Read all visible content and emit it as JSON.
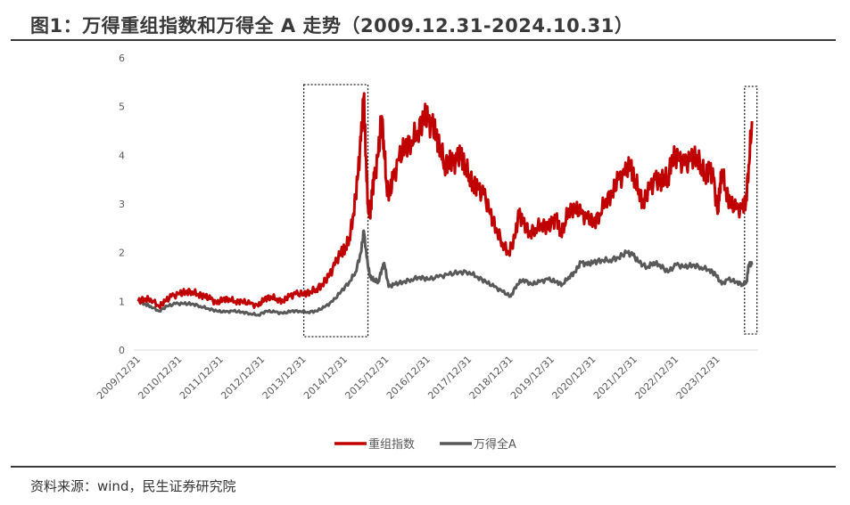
{
  "title": "图1：万得重组指数和万得全 A 走势（2009.12.31-2024.10.31）",
  "source": "资料来源：wind，民生证券研究院",
  "chart_data": {
    "type": "line",
    "title": "万得重组指数和万得全 A 走势（2009.12.31-2024.10.31）",
    "xlabel": "",
    "ylabel": "",
    "ylim": [
      0,
      6
    ],
    "yticks": [
      "0",
      "1",
      "2",
      "3",
      "4",
      "5",
      "6"
    ],
    "xrange": [
      2010.0,
      2024.83
    ],
    "xticks": [
      "2009/12/31",
      "2010/12/31",
      "2011/12/31",
      "2012/12/31",
      "2013/12/31",
      "2014/12/31",
      "2015/12/31",
      "2016/12/31",
      "2017/12/31",
      "2018/12/31",
      "2019/12/31",
      "2020/12/31",
      "2021/12/31",
      "2022/12/31",
      "2023/12/31"
    ],
    "legend_position": "bottom",
    "highlight_ranges": [
      [
        2014.0,
        2015.55
      ],
      [
        2024.65,
        2024.95
      ]
    ],
    "series": [
      {
        "name": "重组指数",
        "color": "#C00000",
        "x": [
          2010.0,
          2010.15,
          2010.3,
          2010.5,
          2010.65,
          2010.8,
          2011.0,
          2011.15,
          2011.3,
          2011.45,
          2011.6,
          2011.75,
          2011.9,
          2012.05,
          2012.2,
          2012.35,
          2012.5,
          2012.7,
          2012.9,
          2013.05,
          2013.2,
          2013.35,
          2013.5,
          2013.65,
          2013.8,
          2014.0,
          2014.15,
          2014.3,
          2014.45,
          2014.6,
          2014.75,
          2014.9,
          2015.0,
          2015.1,
          2015.2,
          2015.3,
          2015.38,
          2015.45,
          2015.5,
          2015.55,
          2015.6,
          2015.65,
          2015.7,
          2015.8,
          2015.88,
          2015.93,
          2016.0,
          2016.08,
          2016.15,
          2016.3,
          2016.45,
          2016.6,
          2016.75,
          2016.9,
          2017.0,
          2017.1,
          2017.2,
          2017.3,
          2017.4,
          2017.5,
          2017.6,
          2017.7,
          2017.8,
          2017.9,
          2018.0,
          2018.1,
          2018.2,
          2018.35,
          2018.5,
          2018.65,
          2018.8,
          2018.95,
          2019.1,
          2019.2,
          2019.3,
          2019.45,
          2019.6,
          2019.75,
          2019.9,
          2020.0,
          2020.1,
          2020.2,
          2020.3,
          2020.4,
          2020.55,
          2020.7,
          2020.85,
          2021.0,
          2021.15,
          2021.3,
          2021.45,
          2021.6,
          2021.75,
          2021.9,
          2022.0,
          2022.1,
          2022.2,
          2022.35,
          2022.5,
          2022.6,
          2022.7,
          2022.8,
          2022.9,
          2023.05,
          2023.2,
          2023.35,
          2023.5,
          2023.6,
          2023.7,
          2023.8,
          2023.9,
          2024.0,
          2024.05,
          2024.1,
          2024.2,
          2024.3,
          2024.45,
          2024.6,
          2024.68,
          2024.75,
          2024.83
        ],
        "values": [
          1.0,
          1.05,
          1.05,
          0.9,
          1.0,
          1.1,
          1.15,
          1.2,
          1.2,
          1.15,
          1.1,
          1.05,
          0.95,
          1.05,
          1.05,
          1.0,
          1.0,
          0.95,
          0.9,
          1.05,
          1.1,
          1.05,
          1.0,
          1.1,
          1.15,
          1.15,
          1.2,
          1.25,
          1.35,
          1.5,
          1.75,
          2.0,
          2.1,
          2.3,
          2.8,
          3.5,
          4.3,
          5.2,
          4.0,
          3.0,
          2.8,
          3.2,
          3.5,
          4.0,
          4.8,
          4.3,
          3.4,
          3.2,
          3.5,
          3.9,
          4.2,
          4.3,
          4.5,
          4.8,
          4.7,
          4.6,
          4.4,
          4.2,
          3.8,
          3.9,
          3.8,
          3.9,
          4.0,
          3.8,
          3.6,
          3.4,
          3.3,
          3.2,
          2.8,
          2.5,
          2.2,
          2.0,
          2.3,
          2.8,
          2.6,
          2.4,
          2.5,
          2.6,
          2.5,
          2.6,
          2.7,
          2.4,
          2.6,
          2.9,
          2.9,
          2.8,
          2.7,
          2.6,
          2.8,
          3.1,
          3.2,
          3.5,
          3.6,
          3.8,
          3.5,
          3.3,
          3.0,
          3.3,
          3.5,
          3.4,
          3.6,
          3.5,
          4.0,
          3.9,
          3.8,
          3.9,
          4.0,
          3.8,
          3.6,
          3.7,
          3.5,
          2.8,
          3.3,
          3.7,
          3.3,
          3.0,
          2.9,
          2.9,
          3.0,
          3.8,
          4.7
        ]
      },
      {
        "name": "万得全A",
        "color": "#595959",
        "x": [
          2010.0,
          2010.15,
          2010.3,
          2010.5,
          2010.7,
          2010.9,
          2011.1,
          2011.3,
          2011.5,
          2011.7,
          2011.9,
          2012.1,
          2012.3,
          2012.5,
          2012.7,
          2012.9,
          2013.1,
          2013.3,
          2013.5,
          2013.7,
          2013.9,
          2014.1,
          2014.3,
          2014.5,
          2014.7,
          2014.9,
          2015.1,
          2015.25,
          2015.38,
          2015.45,
          2015.52,
          2015.6,
          2015.7,
          2015.8,
          2015.9,
          2015.95,
          2016.05,
          2016.2,
          2016.4,
          2016.6,
          2016.8,
          2017.0,
          2017.25,
          2017.5,
          2017.75,
          2018.0,
          2018.2,
          2018.4,
          2018.6,
          2018.8,
          2019.0,
          2019.15,
          2019.3,
          2019.5,
          2019.7,
          2019.9,
          2020.1,
          2020.25,
          2020.4,
          2020.55,
          2020.7,
          2020.85,
          2021.0,
          2021.2,
          2021.4,
          2021.6,
          2021.8,
          2021.95,
          2022.1,
          2022.3,
          2022.45,
          2022.6,
          2022.8,
          2023.0,
          2023.2,
          2023.4,
          2023.6,
          2023.8,
          2023.95,
          2024.1,
          2024.25,
          2024.45,
          2024.6,
          2024.7,
          2024.75,
          2024.83
        ],
        "values": [
          1.0,
          0.95,
          0.9,
          0.8,
          0.9,
          0.95,
          0.95,
          0.95,
          0.9,
          0.85,
          0.8,
          0.78,
          0.8,
          0.78,
          0.75,
          0.72,
          0.8,
          0.78,
          0.75,
          0.8,
          0.8,
          0.78,
          0.8,
          0.88,
          1.0,
          1.2,
          1.4,
          1.6,
          2.0,
          2.45,
          1.9,
          1.5,
          1.45,
          1.4,
          1.7,
          1.75,
          1.3,
          1.35,
          1.4,
          1.45,
          1.5,
          1.45,
          1.5,
          1.55,
          1.6,
          1.6,
          1.5,
          1.4,
          1.3,
          1.2,
          1.1,
          1.35,
          1.45,
          1.35,
          1.4,
          1.45,
          1.4,
          1.35,
          1.5,
          1.6,
          1.8,
          1.75,
          1.8,
          1.85,
          1.85,
          1.9,
          2.0,
          1.95,
          1.8,
          1.7,
          1.8,
          1.75,
          1.6,
          1.75,
          1.7,
          1.75,
          1.7,
          1.65,
          1.55,
          1.35,
          1.45,
          1.4,
          1.35,
          1.4,
          1.75,
          1.75
        ]
      }
    ]
  }
}
